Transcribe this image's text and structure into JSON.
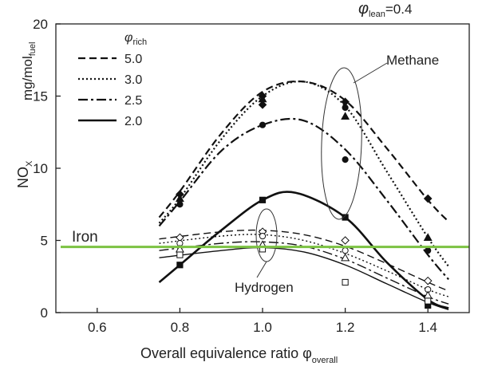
{
  "chart_data": {
    "type": "line",
    "title": "",
    "xlabel_main": "Overall equivalence ratio φ",
    "xlabel_sub": "overall",
    "ylabel_main": "NO",
    "ylabel_sub": "X",
    "yunit_main": "mg/mol",
    "yunit_sub": "fuel",
    "condition_main": "φ",
    "condition_sub": "lean",
    "condition_value": "=0.4",
    "xlim": [
      0.5,
      1.5
    ],
    "ylim": [
      0,
      20
    ],
    "x_ticks": [
      {
        "value": 0.6,
        "label": "0.6"
      },
      {
        "value": 0.8,
        "label": "0.8"
      },
      {
        "value": 1.0,
        "label": "1.0"
      },
      {
        "value": 1.2,
        "label": "1.2"
      },
      {
        "value": 1.4,
        "label": "1.4"
      }
    ],
    "y_ticks": [
      {
        "value": 0,
        "label": "0"
      },
      {
        "value": 5,
        "label": "5"
      },
      {
        "value": 10,
        "label": "10"
      },
      {
        "value": 15,
        "label": "15"
      },
      {
        "value": 20,
        "label": "20"
      }
    ],
    "legend": {
      "title_main": "φ",
      "title_sub": "rich",
      "placement": "top-left",
      "entries": [
        {
          "label": "5.0",
          "style": "dashed"
        },
        {
          "label": "3.0",
          "style": "dotted"
        },
        {
          "label": "2.5",
          "style": "dashdot"
        },
        {
          "label": "2.0",
          "style": "solid"
        }
      ]
    },
    "series": [
      {
        "fuel": "Methane",
        "phi_rich": "5.0",
        "style": "dashed",
        "x": [
          0.75,
          0.8,
          0.9,
          1.0,
          1.1,
          1.2,
          1.3,
          1.4,
          1.45
        ],
        "y": [
          6.6,
          8.4,
          12.4,
          15.3,
          16.0,
          14.7,
          11.4,
          7.8,
          6.3
        ]
      },
      {
        "fuel": "Methane",
        "phi_rich": "3.0",
        "style": "dotted",
        "x": [
          0.75,
          0.8,
          0.9,
          1.0,
          1.1,
          1.2,
          1.3,
          1.4,
          1.45
        ],
        "y": [
          6.2,
          7.9,
          12.0,
          15.0,
          16.0,
          14.3,
          9.8,
          5.2,
          3.2
        ]
      },
      {
        "fuel": "Methane",
        "phi_rich": "2.5",
        "style": "dashdot",
        "x": [
          0.75,
          0.8,
          0.9,
          1.0,
          1.1,
          1.2,
          1.3,
          1.4,
          1.45
        ],
        "y": [
          6.0,
          7.7,
          11.2,
          13.0,
          13.3,
          11.3,
          7.8,
          4.0,
          2.3
        ]
      },
      {
        "fuel": "Methane",
        "phi_rich": "2.0",
        "style": "solid",
        "x": [
          0.75,
          0.8,
          0.9,
          1.0,
          1.08,
          1.2,
          1.3,
          1.4,
          1.45
        ],
        "y": [
          2.1,
          3.3,
          5.7,
          7.8,
          8.3,
          6.6,
          3.5,
          0.9,
          0.3
        ]
      },
      {
        "fuel": "Hydrogen",
        "phi_rich": "5.0",
        "style": "dashed",
        "x": [
          0.75,
          0.9,
          1.0,
          1.1,
          1.2,
          1.3,
          1.4,
          1.45
        ],
        "y": [
          5.1,
          5.6,
          5.7,
          5.4,
          4.6,
          3.4,
          2.1,
          1.5
        ]
      },
      {
        "fuel": "Hydrogen",
        "phi_rich": "3.0",
        "style": "dotted",
        "x": [
          0.75,
          0.9,
          1.0,
          1.1,
          1.2,
          1.3,
          1.4,
          1.45
        ],
        "y": [
          4.8,
          5.3,
          5.4,
          5.0,
          4.1,
          2.9,
          1.6,
          1.1
        ]
      },
      {
        "fuel": "Hydrogen",
        "phi_rich": "2.5",
        "style": "dashdot",
        "x": [
          0.75,
          0.9,
          1.0,
          1.1,
          1.2,
          1.3,
          1.4,
          1.45
        ],
        "y": [
          4.3,
          4.8,
          4.9,
          4.6,
          3.7,
          2.4,
          1.1,
          0.6
        ]
      },
      {
        "fuel": "Hydrogen",
        "phi_rich": "2.0",
        "style": "solid",
        "x": [
          0.75,
          0.9,
          1.0,
          1.1,
          1.2,
          1.3,
          1.4,
          1.45
        ],
        "y": [
          3.8,
          4.3,
          4.5,
          4.2,
          3.3,
          2.0,
          0.7,
          0.2
        ]
      }
    ],
    "markers": [
      {
        "x": 0.8,
        "y": 8.2,
        "shape": "diamond",
        "fill": "black"
      },
      {
        "x": 0.8,
        "y": 7.9,
        "shape": "triangle",
        "fill": "black"
      },
      {
        "x": 0.8,
        "y": 7.5,
        "shape": "circle",
        "fill": "black"
      },
      {
        "x": 1.0,
        "y": 15.0,
        "shape": "diamond",
        "fill": "black"
      },
      {
        "x": 1.0,
        "y": 14.8,
        "shape": "triangle",
        "fill": "black"
      },
      {
        "x": 1.0,
        "y": 14.4,
        "shape": "diamond",
        "fill": "black"
      },
      {
        "x": 1.0,
        "y": 13.0,
        "shape": "circle",
        "fill": "black"
      },
      {
        "x": 1.2,
        "y": 14.6,
        "shape": "diamond",
        "fill": "black"
      },
      {
        "x": 1.2,
        "y": 14.2,
        "shape": "circle",
        "fill": "black"
      },
      {
        "x": 1.2,
        "y": 13.6,
        "shape": "triangle",
        "fill": "black"
      },
      {
        "x": 1.2,
        "y": 10.6,
        "shape": "circle",
        "fill": "black"
      },
      {
        "x": 1.4,
        "y": 7.9,
        "shape": "diamond",
        "fill": "black"
      },
      {
        "x": 1.4,
        "y": 5.2,
        "shape": "triangle",
        "fill": "black"
      },
      {
        "x": 1.4,
        "y": 4.3,
        "shape": "circle",
        "fill": "black"
      },
      {
        "x": 0.8,
        "y": 3.3,
        "shape": "square",
        "fill": "black"
      },
      {
        "x": 1.0,
        "y": 7.8,
        "shape": "square",
        "fill": "black"
      },
      {
        "x": 1.2,
        "y": 6.6,
        "shape": "square",
        "fill": "black"
      },
      {
        "x": 1.4,
        "y": 0.5,
        "shape": "square",
        "fill": "black"
      },
      {
        "x": 0.8,
        "y": 5.2,
        "shape": "diamond",
        "fill": "white"
      },
      {
        "x": 0.8,
        "y": 4.8,
        "shape": "circle",
        "fill": "white"
      },
      {
        "x": 0.8,
        "y": 4.4,
        "shape": "triangle",
        "fill": "white"
      },
      {
        "x": 0.8,
        "y": 4.0,
        "shape": "square",
        "fill": "white"
      },
      {
        "x": 1.0,
        "y": 5.6,
        "shape": "diamond",
        "fill": "white"
      },
      {
        "x": 1.0,
        "y": 5.3,
        "shape": "circle",
        "fill": "white"
      },
      {
        "x": 1.0,
        "y": 4.7,
        "shape": "triangle",
        "fill": "white"
      },
      {
        "x": 1.0,
        "y": 4.4,
        "shape": "square",
        "fill": "white"
      },
      {
        "x": 1.2,
        "y": 5.0,
        "shape": "diamond",
        "fill": "white"
      },
      {
        "x": 1.2,
        "y": 4.3,
        "shape": "circle",
        "fill": "white"
      },
      {
        "x": 1.2,
        "y": 3.8,
        "shape": "triangle",
        "fill": "white"
      },
      {
        "x": 1.2,
        "y": 2.1,
        "shape": "square",
        "fill": "white"
      },
      {
        "x": 1.4,
        "y": 2.2,
        "shape": "diamond",
        "fill": "white"
      },
      {
        "x": 1.4,
        "y": 1.6,
        "shape": "circle",
        "fill": "white"
      },
      {
        "x": 1.4,
        "y": 1.2,
        "shape": "triangle",
        "fill": "white"
      },
      {
        "x": 1.4,
        "y": 0.8,
        "shape": "square",
        "fill": "white"
      }
    ],
    "reference_line": {
      "label": "Iron",
      "y": 4.55,
      "color": "#7cc242"
    },
    "annotations": {
      "methane": "Methane",
      "hydrogen": "Hydrogen"
    }
  }
}
